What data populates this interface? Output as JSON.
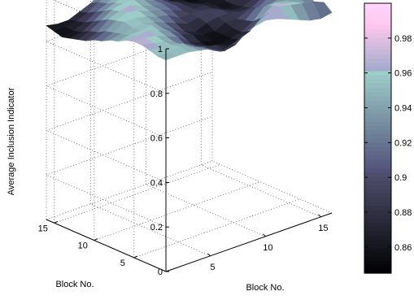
{
  "chart_data": {
    "type": "surface",
    "title": "",
    "xlabel": "Block No.",
    "ylabel": "Block No.",
    "zlabel": "Average Inclusion Indicator",
    "x_ticks": [
      "5",
      "10",
      "15"
    ],
    "y_ticks": [
      "5",
      "10",
      "15"
    ],
    "z_ticks": [
      "0",
      "0.2",
      "0.4",
      "0.6",
      "0.8",
      "1"
    ],
    "xlim": [
      1,
      16
    ],
    "ylim": [
      1,
      16
    ],
    "zlim": [
      0,
      1
    ],
    "grid": true,
    "colormap": "bone",
    "colorbar": {
      "ticks": [
        "0.86",
        "0.88",
        "0.9",
        "0.92",
        "0.94",
        "0.96",
        "0.98"
      ],
      "range": [
        0.845,
        1.0
      ]
    },
    "grid_size": [
      16,
      16
    ],
    "z": [
      [
        0.95,
        0.95,
        0.95,
        0.94,
        0.93,
        0.9,
        0.91,
        0.94,
        0.96,
        0.97,
        0.96,
        0.94,
        0.92,
        0.9,
        0.89,
        0.9
      ],
      [
        0.95,
        0.95,
        0.96,
        0.94,
        0.92,
        0.89,
        0.87,
        0.88,
        0.92,
        0.95,
        0.97,
        0.98,
        0.97,
        0.96,
        0.95,
        0.93
      ],
      [
        0.96,
        0.96,
        0.95,
        0.94,
        0.91,
        0.89,
        0.88,
        0.86,
        0.87,
        0.89,
        0.93,
        0.97,
        0.96,
        0.95,
        0.93,
        0.91
      ],
      [
        0.97,
        0.96,
        0.95,
        0.93,
        0.9,
        0.88,
        0.86,
        0.85,
        0.86,
        0.87,
        0.9,
        0.95,
        0.95,
        0.94,
        0.94,
        0.93
      ],
      [
        0.97,
        0.97,
        0.96,
        0.94,
        0.92,
        0.88,
        0.86,
        0.85,
        0.86,
        0.87,
        0.89,
        0.93,
        0.92,
        0.93,
        0.95,
        0.96
      ],
      [
        0.96,
        0.96,
        0.97,
        0.95,
        0.93,
        0.9,
        0.88,
        0.86,
        0.86,
        0.88,
        0.88,
        0.9,
        0.9,
        0.93,
        0.96,
        0.95
      ],
      [
        0.94,
        0.95,
        0.95,
        0.96,
        0.93,
        0.91,
        0.88,
        0.86,
        0.88,
        0.89,
        0.89,
        0.88,
        0.88,
        0.91,
        0.94,
        0.96
      ],
      [
        0.93,
        0.94,
        0.95,
        0.95,
        0.94,
        0.92,
        0.9,
        0.88,
        0.89,
        0.9,
        0.89,
        0.87,
        0.87,
        0.89,
        0.93,
        0.95
      ],
      [
        0.91,
        0.93,
        0.96,
        0.96,
        0.95,
        0.93,
        0.92,
        0.89,
        0.89,
        0.89,
        0.88,
        0.86,
        0.86,
        0.89,
        0.92,
        0.95
      ],
      [
        0.9,
        0.92,
        0.95,
        0.97,
        0.96,
        0.94,
        0.93,
        0.91,
        0.89,
        0.88,
        0.88,
        0.86,
        0.86,
        0.9,
        0.93,
        0.94
      ],
      [
        0.88,
        0.9,
        0.94,
        0.96,
        0.97,
        0.95,
        0.93,
        0.92,
        0.9,
        0.88,
        0.87,
        0.86,
        0.87,
        0.91,
        0.94,
        0.95
      ],
      [
        0.87,
        0.89,
        0.92,
        0.95,
        0.96,
        0.96,
        0.94,
        0.92,
        0.9,
        0.88,
        0.86,
        0.85,
        0.87,
        0.92,
        0.95,
        0.96
      ],
      [
        0.86,
        0.87,
        0.9,
        0.93,
        0.95,
        0.96,
        0.95,
        0.93,
        0.9,
        0.87,
        0.86,
        0.85,
        0.88,
        0.93,
        0.96,
        0.97
      ],
      [
        0.85,
        0.86,
        0.88,
        0.91,
        0.93,
        0.95,
        0.96,
        0.94,
        0.91,
        0.88,
        0.86,
        0.86,
        0.89,
        0.94,
        0.97,
        0.97
      ],
      [
        0.86,
        0.86,
        0.87,
        0.89,
        0.92,
        0.94,
        0.95,
        0.95,
        0.92,
        0.89,
        0.87,
        0.87,
        0.9,
        0.94,
        0.96,
        0.96
      ],
      [
        0.87,
        0.86,
        0.86,
        0.88,
        0.9,
        0.93,
        0.95,
        0.96,
        0.94,
        0.91,
        0.89,
        0.89,
        0.91,
        0.93,
        0.94,
        0.95
      ]
    ]
  }
}
